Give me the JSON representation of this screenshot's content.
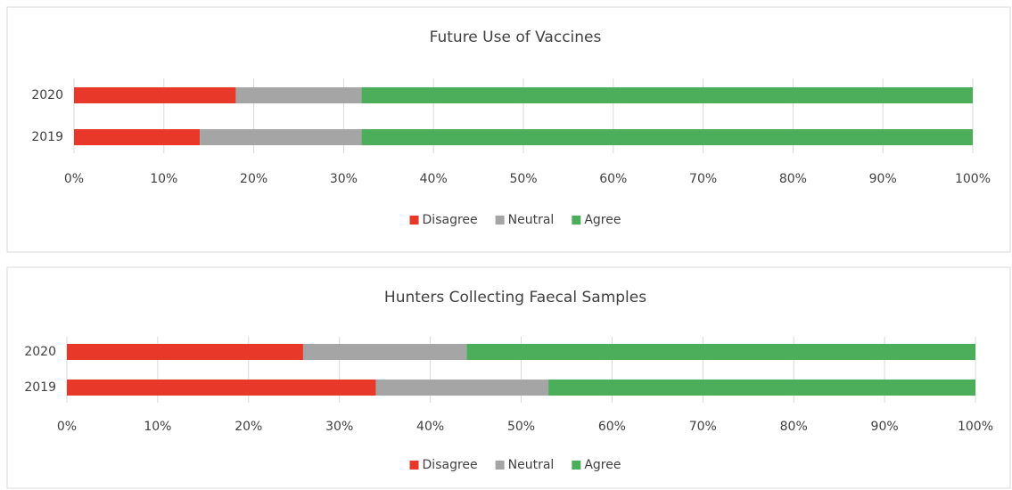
{
  "chart_data": [
    {
      "type": "bar",
      "stacked": true,
      "orientation": "horizontal",
      "title": "Future Use of Vaccines",
      "categories": [
        "2020",
        "2019"
      ],
      "series": [
        {
          "name": "Disagree",
          "color": "#e8382a",
          "values": [
            18,
            14
          ]
        },
        {
          "name": "Neutral",
          "color": "#a5a5a5",
          "values": [
            14,
            18
          ]
        },
        {
          "name": "Agree",
          "color": "#4cae5b",
          "values": [
            68,
            68
          ]
        }
      ],
      "xlim": [
        0,
        100
      ],
      "xticks": [
        {
          "value": 0,
          "label": "0%"
        },
        {
          "value": 10,
          "label": "10%"
        },
        {
          "value": 20,
          "label": "20%"
        },
        {
          "value": 30,
          "label": "30%"
        },
        {
          "value": 40,
          "label": "40%"
        },
        {
          "value": 50,
          "label": "50%"
        },
        {
          "value": 60,
          "label": "60%"
        },
        {
          "value": 70,
          "label": "70%"
        },
        {
          "value": 80,
          "label": "80%"
        },
        {
          "value": 90,
          "label": "90%"
        },
        {
          "value": 100,
          "label": "100%"
        }
      ],
      "grid": true,
      "legend": "bottom"
    },
    {
      "type": "bar",
      "stacked": true,
      "orientation": "horizontal",
      "title": "Hunters Collecting Faecal Samples",
      "categories": [
        "2020",
        "2019"
      ],
      "series": [
        {
          "name": "Disagree",
          "color": "#e8382a",
          "values": [
            26,
            34
          ]
        },
        {
          "name": "Neutral",
          "color": "#a5a5a5",
          "values": [
            18,
            19
          ]
        },
        {
          "name": "Agree",
          "color": "#4cae5b",
          "values": [
            56,
            47
          ]
        }
      ],
      "xlim": [
        0,
        100
      ],
      "xticks": [
        {
          "value": 0,
          "label": "0%"
        },
        {
          "value": 10,
          "label": "10%"
        },
        {
          "value": 20,
          "label": "20%"
        },
        {
          "value": 30,
          "label": "30%"
        },
        {
          "value": 40,
          "label": "40%"
        },
        {
          "value": 50,
          "label": "50%"
        },
        {
          "value": 60,
          "label": "60%"
        },
        {
          "value": 70,
          "label": "70%"
        },
        {
          "value": 80,
          "label": "80%"
        },
        {
          "value": 90,
          "label": "90%"
        },
        {
          "value": 100,
          "label": "100%"
        }
      ],
      "grid": true,
      "legend": "bottom"
    }
  ]
}
